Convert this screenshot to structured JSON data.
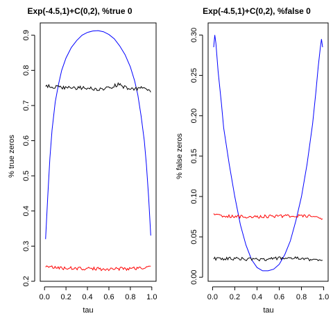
{
  "chart_data": [
    {
      "type": "line",
      "title": "Exp(-4.5,1)+C(0,2), %true 0",
      "xlabel": "tau",
      "ylabel": "% true zeros",
      "xlim": [
        -0.04,
        1.04
      ],
      "ylim": [
        0.2,
        0.935
      ],
      "xticks": [
        0.0,
        0.2,
        0.4,
        0.6,
        0.8,
        1.0
      ],
      "xtick_labels": [
        "0.0",
        "0.2",
        "0.4",
        "0.6",
        "0.8",
        "1.0"
      ],
      "yticks": [
        0.2,
        0.3,
        0.4,
        0.5,
        0.6,
        0.7,
        0.8,
        0.9
      ],
      "ytick_labels": [
        "0.2",
        "0.3",
        "0.4",
        "0.5",
        "0.6",
        "0.7",
        "0.8",
        "0.9"
      ],
      "grid": false,
      "series": [
        {
          "color": "#0000ff",
          "x": [
            0.01,
            0.03,
            0.05,
            0.07,
            0.1,
            0.13,
            0.16,
            0.2,
            0.25,
            0.3,
            0.35,
            0.4,
            0.45,
            0.5,
            0.55,
            0.6,
            0.65,
            0.7,
            0.75,
            0.8,
            0.84,
            0.87,
            0.9,
            0.93,
            0.95,
            0.97,
            0.99
          ],
          "y": [
            0.32,
            0.44,
            0.55,
            0.63,
            0.71,
            0.76,
            0.8,
            0.835,
            0.865,
            0.885,
            0.9,
            0.908,
            0.912,
            0.913,
            0.91,
            0.902,
            0.89,
            0.87,
            0.845,
            0.81,
            0.77,
            0.73,
            0.67,
            0.6,
            0.53,
            0.44,
            0.33
          ]
        },
        {
          "color": "#000000",
          "noise": 0.005,
          "x": [
            0.01,
            0.2,
            0.4,
            0.5,
            0.6,
            0.69,
            0.8,
            0.9,
            0.99
          ],
          "y": [
            0.755,
            0.75,
            0.75,
            0.745,
            0.75,
            0.76,
            0.745,
            0.75,
            0.74
          ]
        },
        {
          "color": "#ff0000",
          "noise": 0.005,
          "x": [
            0.01,
            0.1,
            0.25,
            0.5,
            0.75,
            0.9,
            0.99
          ],
          "y": [
            0.245,
            0.238,
            0.237,
            0.235,
            0.236,
            0.238,
            0.24
          ]
        }
      ]
    },
    {
      "type": "line",
      "title": "Exp(-4.5,1)+C(0,2), %false 0",
      "xlabel": "tau",
      "ylabel": "% false zeros",
      "xlim": [
        -0.04,
        1.04
      ],
      "ylim": [
        -0.005,
        0.315
      ],
      "xticks": [
        0.0,
        0.2,
        0.4,
        0.6,
        0.8,
        1.0
      ],
      "xtick_labels": [
        "0.0",
        "0.2",
        "0.4",
        "0.6",
        "0.8",
        "1.0"
      ],
      "yticks": [
        0.0,
        0.05,
        0.1,
        0.15,
        0.2,
        0.25,
        0.3
      ],
      "ytick_labels": [
        "0.00",
        "0.05",
        "0.10",
        "0.15",
        "0.20",
        "0.25",
        "0.30"
      ],
      "grid": false,
      "series": [
        {
          "color": "#0000ff",
          "x": [
            0.01,
            0.02,
            0.03,
            0.05,
            0.08,
            0.1,
            0.15,
            0.2,
            0.25,
            0.3,
            0.35,
            0.4,
            0.45,
            0.5,
            0.55,
            0.6,
            0.65,
            0.7,
            0.75,
            0.8,
            0.85,
            0.9,
            0.93,
            0.95,
            0.97,
            0.98,
            0.99
          ],
          "y": [
            0.285,
            0.3,
            0.29,
            0.255,
            0.215,
            0.185,
            0.14,
            0.1,
            0.065,
            0.04,
            0.022,
            0.012,
            0.008,
            0.008,
            0.01,
            0.016,
            0.028,
            0.045,
            0.07,
            0.1,
            0.14,
            0.19,
            0.23,
            0.26,
            0.285,
            0.295,
            0.285
          ]
        },
        {
          "color": "#000000",
          "noise": 0.002,
          "x": [
            0.01,
            0.2,
            0.4,
            0.55,
            0.7,
            0.85,
            0.99
          ],
          "y": [
            0.023,
            0.023,
            0.022,
            0.023,
            0.024,
            0.022,
            0.022
          ]
        },
        {
          "color": "#ff0000",
          "noise": 0.002,
          "x": [
            0.01,
            0.2,
            0.4,
            0.6,
            0.8,
            0.9,
            0.99
          ],
          "y": [
            0.077,
            0.075,
            0.075,
            0.076,
            0.076,
            0.075,
            0.073
          ]
        }
      ]
    }
  ]
}
